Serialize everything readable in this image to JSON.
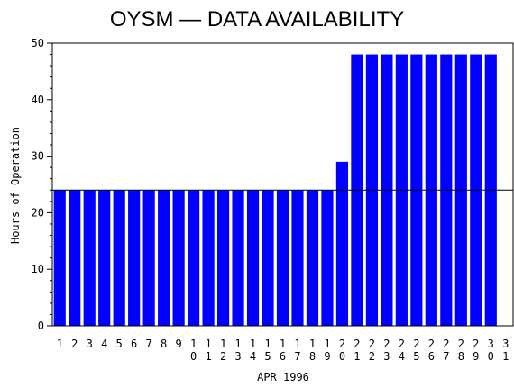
{
  "chart_data": {
    "type": "bar",
    "title": "OYSM — DATA AVAILABILITY",
    "xlabel": "APR 1996",
    "ylabel": "Hours of Operation",
    "ylim": [
      0,
      50
    ],
    "yticks": [
      "0",
      "10",
      "20",
      "30",
      "40",
      "50"
    ],
    "categories": [
      "1",
      "2",
      "3",
      "4",
      "5",
      "6",
      "7",
      "8",
      "9",
      "10",
      "11",
      "12",
      "13",
      "14",
      "15",
      "16",
      "17",
      "18",
      "19",
      "20",
      "21",
      "22",
      "23",
      "24",
      "25",
      "26",
      "27",
      "28",
      "29",
      "30",
      "31"
    ],
    "values": [
      24,
      24,
      24,
      24,
      24,
      24,
      24,
      24,
      24,
      24,
      24,
      24,
      24,
      24,
      24,
      24,
      24,
      24,
      24,
      29,
      48,
      48,
      48,
      48,
      48,
      48,
      48,
      48,
      48,
      48,
      null
    ],
    "reference_line": 24,
    "bar_color": "#0000ff",
    "grid": false
  }
}
